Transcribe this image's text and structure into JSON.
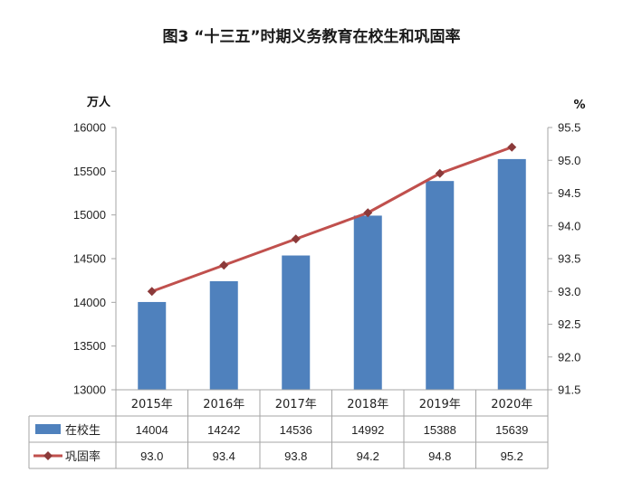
{
  "title": "图3 “十三五”时期义务教育在校生和巩固率",
  "left_unit": "万人",
  "right_unit": "%",
  "colors": {
    "bar": "#4F81BD",
    "line": "#C0504D",
    "marker": "#8B3A3A",
    "axis": "#A6A6A6"
  },
  "chart_data": {
    "type": "bar+line",
    "categories": [
      "2015年",
      "2016年",
      "2017年",
      "2018年",
      "2019年",
      "2020年"
    ],
    "series": [
      {
        "name": "在校生",
        "type": "bar",
        "axis": "left",
        "values": [
          14004,
          14242,
          14536,
          14992,
          15388,
          15639
        ],
        "labels": [
          "14004",
          "14242",
          "14536",
          "14992",
          "15388",
          "15639"
        ]
      },
      {
        "name": "巩固率",
        "type": "line",
        "axis": "right",
        "values": [
          93.0,
          93.4,
          93.8,
          94.2,
          94.8,
          95.2
        ],
        "labels": [
          "93.0",
          "93.4",
          "93.8",
          "94.2",
          "94.8",
          "95.2"
        ]
      }
    ],
    "left_axis": {
      "min": 13000,
      "max": 16000,
      "step": 500,
      "ticks": [
        "13000",
        "13500",
        "14000",
        "14500",
        "15000",
        "15500",
        "16000"
      ]
    },
    "right_axis": {
      "min": 91.5,
      "max": 95.5,
      "step": 0.5,
      "ticks": [
        "91.5",
        "92.0",
        "92.5",
        "93.0",
        "93.5",
        "94.0",
        "94.5",
        "95.0",
        "95.5"
      ]
    },
    "grid": false,
    "legend": "data-table"
  }
}
